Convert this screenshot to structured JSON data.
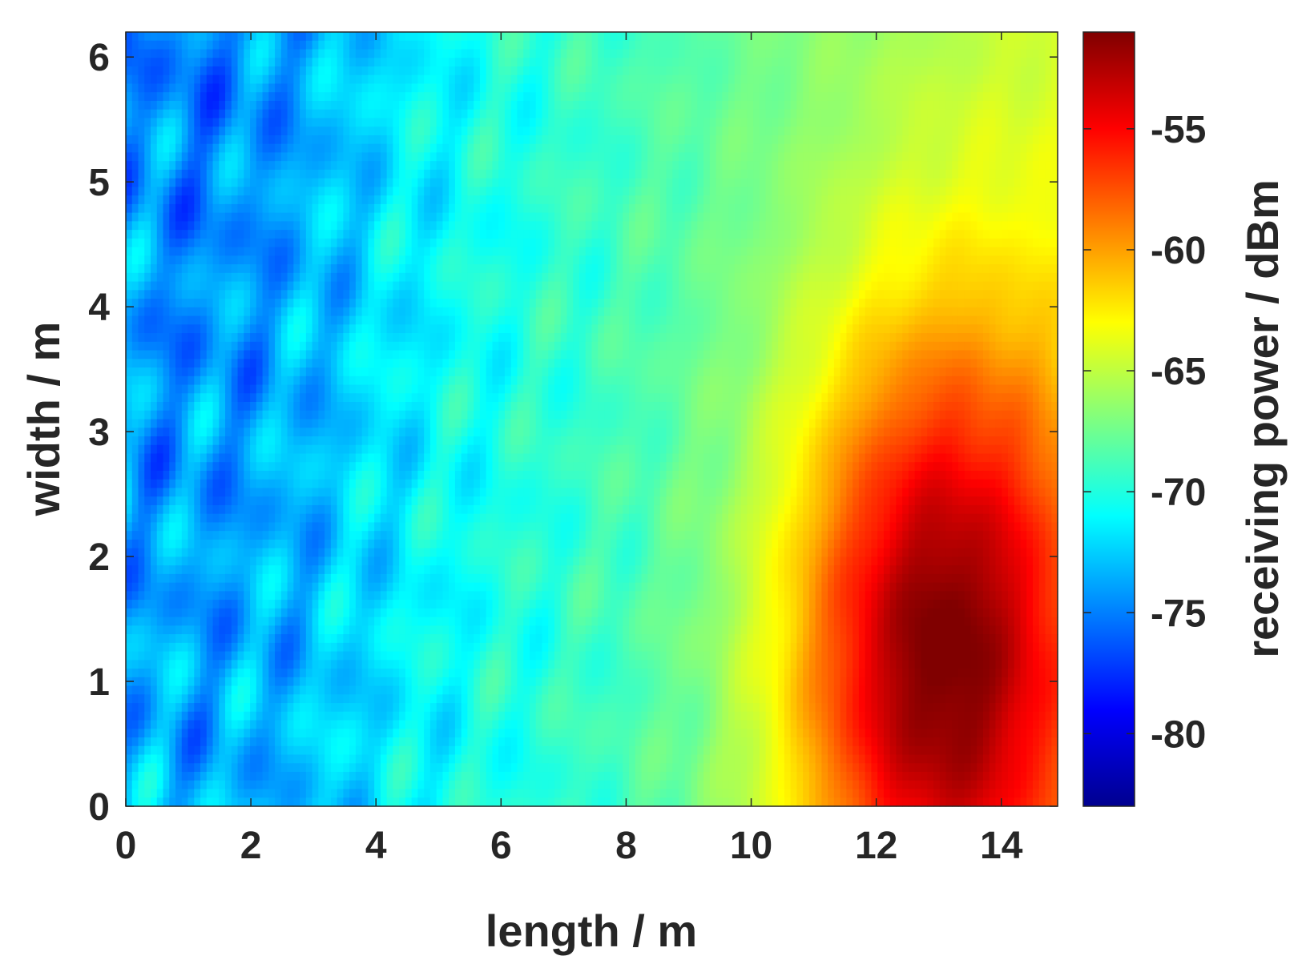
{
  "chart_data": {
    "type": "heatmap",
    "title": "",
    "xlabel": "length / m",
    "ylabel": "width / m",
    "xlim": [
      0,
      14.9
    ],
    "ylim": [
      0,
      6.2
    ],
    "xticks": [
      0,
      2,
      4,
      6,
      8,
      10,
      12,
      14
    ],
    "yticks": [
      0,
      1,
      2,
      3,
      4,
      5,
      6
    ],
    "colorbar": {
      "label": "receiving power / dBm",
      "range": [
        -83,
        -51
      ],
      "ticks": [
        -55,
        -60,
        -65,
        -70,
        -75,
        -80
      ],
      "colormap": "jet"
    },
    "field": {
      "description": "receiving power field",
      "background_level": -72,
      "gradient_slope_per_m": 0.9,
      "peak": {
        "x": 13.0,
        "y": 1.2,
        "value": -51
      },
      "noise_amplitude": 2.5
    },
    "sample_values_dBm": [
      {
        "x": 1,
        "y": 5.5,
        "value": -76
      },
      {
        "x": 4,
        "y": 3,
        "value": -72
      },
      {
        "x": 8,
        "y": 3,
        "value": -66
      },
      {
        "x": 10,
        "y": 1,
        "value": -60
      },
      {
        "x": 13,
        "y": 1.2,
        "value": -51
      },
      {
        "x": 14,
        "y": 5,
        "value": -64
      }
    ]
  }
}
